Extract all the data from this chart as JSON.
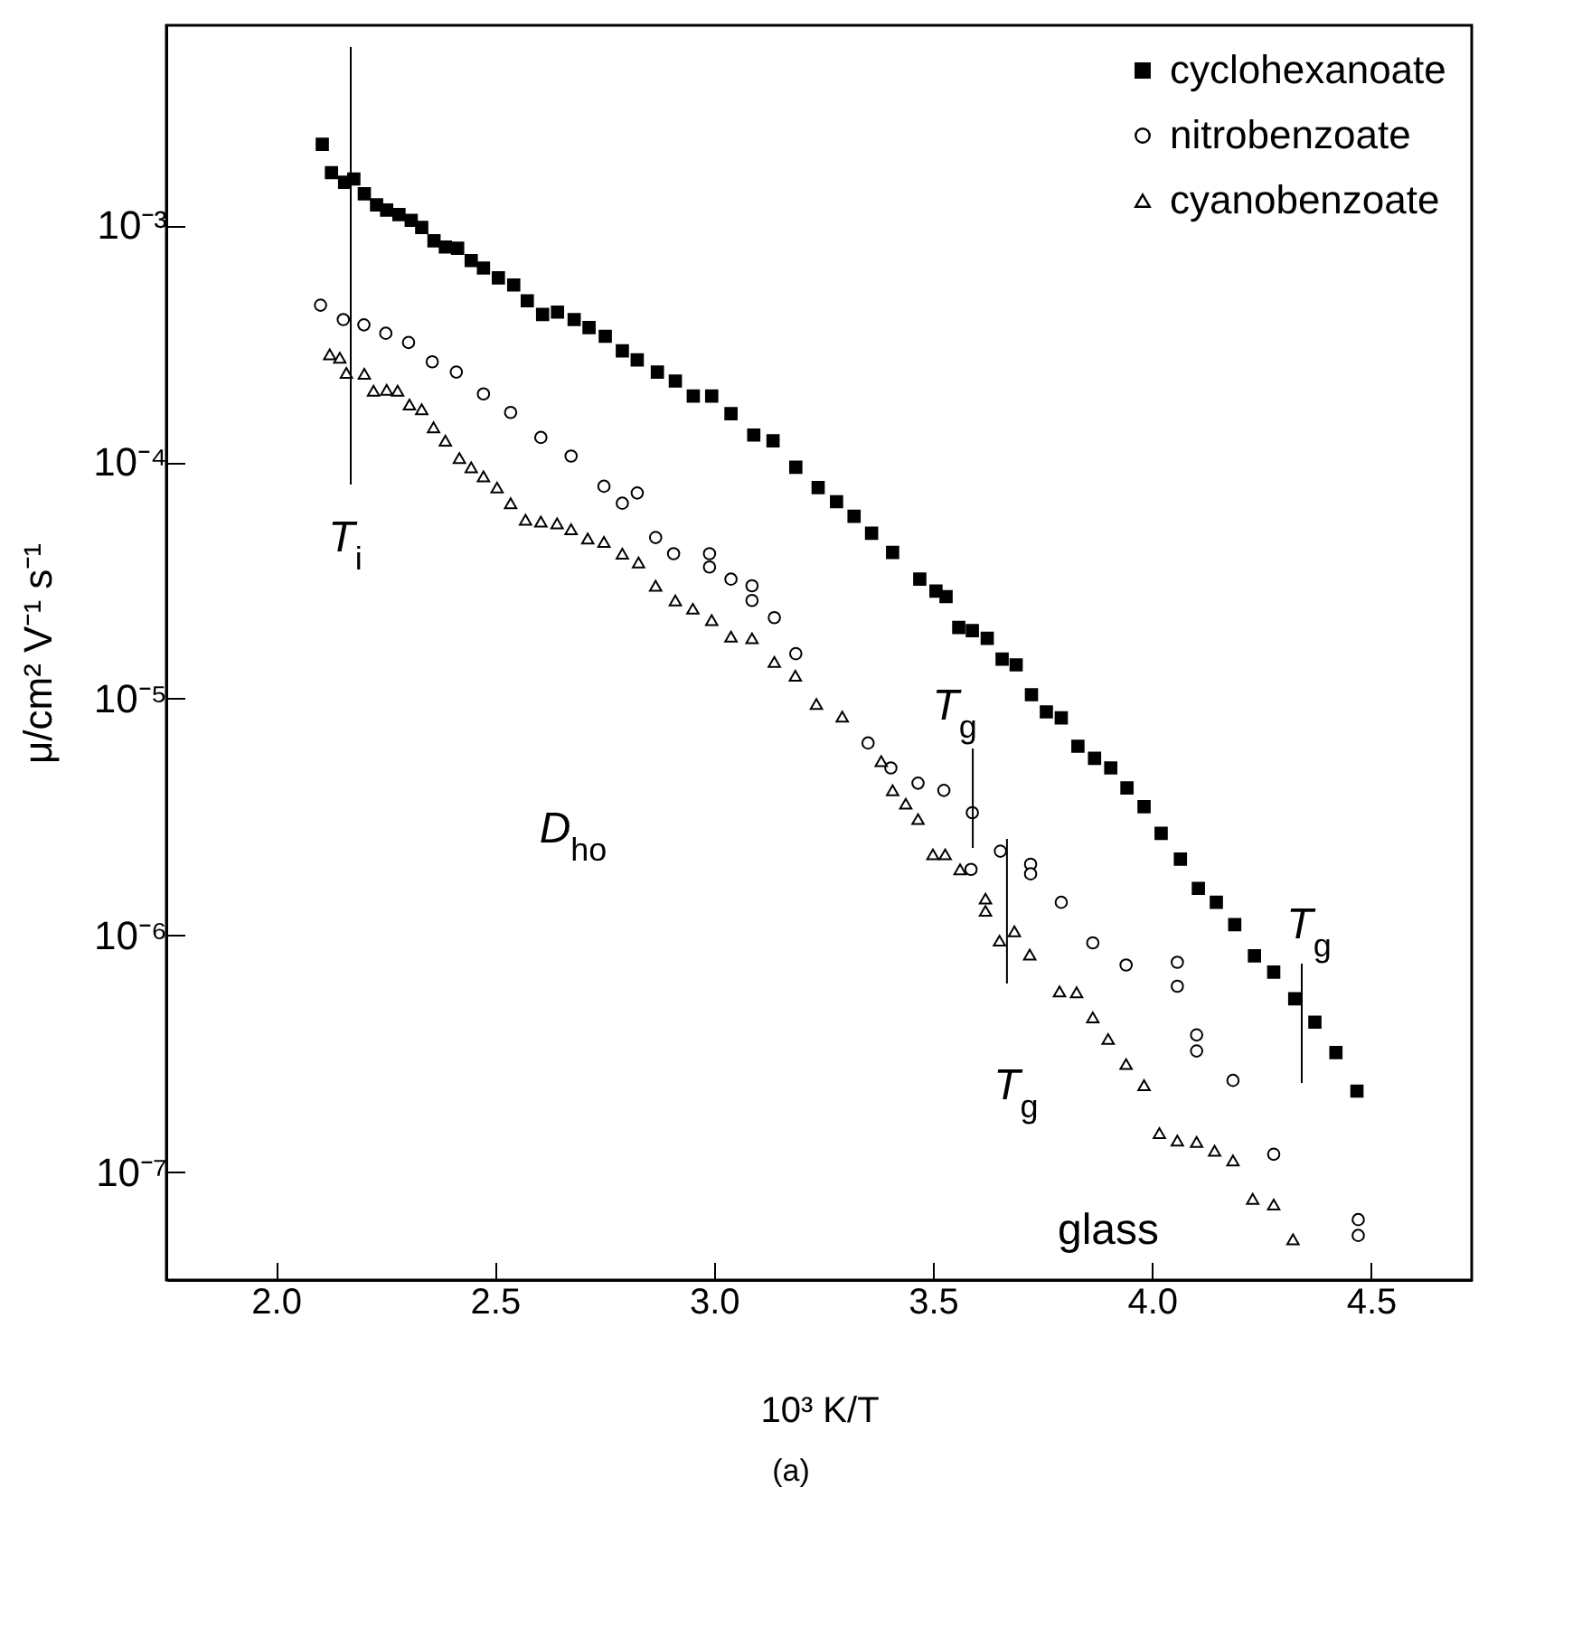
{
  "chart_data": {
    "type": "scatter",
    "xlabel": "10³ K/T",
    "ylabel": "μ/cm² V⁻¹ s⁻¹",
    "log": "y",
    "grid": false,
    "legend": "top right",
    "xlim": [
      1.75,
      4.73
    ],
    "ylim": [
      3.5e-08,
      0.007
    ],
    "xticks": [
      {
        "value": 2,
        "label": "2.0"
      },
      {
        "value": 2.5,
        "label": "2.5"
      },
      {
        "value": 3,
        "label": "3.0"
      },
      {
        "value": 3.5,
        "label": "3.5"
      },
      {
        "value": 4,
        "label": "4.0"
      },
      {
        "value": 4.5,
        "label": "4.5"
      }
    ],
    "yticks": [
      {
        "value": 1e-07,
        "label": "10⁻⁷"
      },
      {
        "value": 1e-06,
        "label": "10⁻⁶"
      },
      {
        "value": 1e-05,
        "label": "10⁻⁵"
      },
      {
        "value": 0.0001,
        "label": "10⁻⁴"
      },
      {
        "value": 0.001,
        "label": "10⁻³"
      }
    ],
    "series": [
      {
        "name": "cyclohexanoate",
        "color": "#000000",
        "marker": "square",
        "x": [
          2.106,
          2.127,
          2.157,
          2.178,
          2.202,
          2.23,
          2.253,
          2.281,
          2.309,
          2.333,
          2.361,
          2.387,
          2.415,
          2.446,
          2.474,
          2.508,
          2.543,
          2.574,
          2.609,
          2.643,
          2.681,
          2.715,
          2.752,
          2.791,
          2.825,
          2.871,
          2.912,
          2.953,
          2.995,
          3.039,
          3.091,
          3.135,
          3.187,
          3.238,
          3.28,
          3.32,
          3.36,
          3.408,
          3.47,
          3.507,
          3.53,
          3.559,
          3.59,
          3.624,
          3.658,
          3.69,
          3.725,
          3.759,
          3.793,
          3.831,
          3.869,
          3.906,
          3.943,
          3.982,
          4.021,
          4.065,
          4.106,
          4.147,
          4.189,
          4.234,
          4.278,
          4.326,
          4.372,
          4.42,
          4.468
        ],
        "values": [
          0.0022,
          0.00167,
          0.00152,
          0.00157,
          0.00136,
          0.00122,
          0.00116,
          0.00111,
          0.00105,
          0.00098,
          0.00086,
          0.00081,
          0.0008,
          0.00071,
          0.00066,
          0.0006,
          0.00056,
          0.00048,
          0.00042,
          0.00043,
          0.0004,
          0.00037,
          0.00034,
          0.000295,
          0.00027,
          0.00024,
          0.00022,
          0.00019,
          0.00019,
          0.00016,
          0.00013,
          0.000123,
          9.5e-05,
          7.8e-05,
          6.8e-05,
          5.9e-05,
          5e-05,
          4.15e-05,
          3.2e-05,
          2.85e-05,
          2.7e-05,
          2e-05,
          1.94e-05,
          1.8e-05,
          1.47e-05,
          1.39e-05,
          1.04e-05,
          8.8e-06,
          8.3e-06,
          6.3e-06,
          5.6e-06,
          5.1e-06,
          4.2e-06,
          3.5e-06,
          2.7e-06,
          2.1e-06,
          1.58e-06,
          1.38e-06,
          1.11e-06,
          8.2e-07,
          7e-07,
          5.4e-07,
          4.3e-07,
          3.2e-07,
          2.2e-07
        ]
      },
      {
        "name": "nitrobenzoate",
        "color": "#000000",
        "marker": "circle",
        "x": [
          2.102,
          2.154,
          2.201,
          2.251,
          2.303,
          2.357,
          2.412,
          2.474,
          2.536,
          2.605,
          2.674,
          2.749,
          2.791,
          2.825,
          2.867,
          2.908,
          2.99,
          2.99,
          3.039,
          3.087,
          3.087,
          3.138,
          3.187,
          3.352,
          3.404,
          3.466,
          3.525,
          3.59,
          3.587,
          3.654,
          3.723,
          3.723,
          3.793,
          3.865,
          3.941,
          4.058,
          4.058,
          4.102,
          4.102,
          4.185,
          4.278,
          4.471,
          4.471
        ],
        "values": [
          0.00046,
          0.0004,
          0.00038,
          0.00035,
          0.00032,
          0.000265,
          0.00024,
          0.000194,
          0.000162,
          0.000127,
          0.000106,
          7.9e-05,
          6.7e-05,
          7.4e-05,
          4.8e-05,
          4.1e-05,
          4.1e-05,
          3.6e-05,
          3.2e-05,
          3e-05,
          2.6e-05,
          2.2e-05,
          1.55e-05,
          6.5e-06,
          5.1e-06,
          4.4e-06,
          4.1e-06,
          3.3e-06,
          1.9e-06,
          2.27e-06,
          2e-06,
          1.82e-06,
          1.38e-06,
          9.3e-07,
          7.5e-07,
          7.7e-07,
          6.1e-07,
          3.8e-07,
          3.25e-07,
          2.44e-07,
          1.19e-07,
          6.3e-08,
          5.4e-08
        ]
      },
      {
        "name": "cyanobenzoate",
        "color": "#000000",
        "marker": "triangle",
        "x": [
          2.123,
          2.146,
          2.161,
          2.202,
          2.223,
          2.253,
          2.278,
          2.305,
          2.333,
          2.36,
          2.387,
          2.419,
          2.446,
          2.474,
          2.505,
          2.536,
          2.57,
          2.605,
          2.642,
          2.674,
          2.712,
          2.749,
          2.791,
          2.828,
          2.867,
          2.912,
          2.952,
          2.995,
          3.039,
          3.087,
          3.138,
          3.186,
          3.234,
          3.293,
          3.382,
          3.408,
          3.438,
          3.466,
          3.5,
          3.528,
          3.562,
          3.62,
          3.62,
          3.652,
          3.686,
          3.721,
          3.789,
          3.828,
          3.865,
          3.9,
          3.941,
          3.982,
          4.017,
          4.058,
          4.102,
          4.143,
          4.185,
          4.23,
          4.278,
          4.322
        ],
        "values": [
          0.000285,
          0.000276,
          0.000238,
          0.000236,
          0.0002,
          0.000202,
          0.0002,
          0.000175,
          0.000167,
          0.00014,
          0.000123,
          0.000104,
          9.5e-05,
          8.7e-05,
          7.8e-05,
          6.7e-05,
          5.7e-05,
          5.6e-05,
          5.5e-05,
          5.2e-05,
          4.75e-05,
          4.6e-05,
          4.1e-05,
          3.76e-05,
          3e-05,
          2.6e-05,
          2.4e-05,
          2.15e-05,
          1.83e-05,
          1.8e-05,
          1.43e-05,
          1.25e-05,
          9.5e-06,
          8.4e-06,
          5.45e-06,
          4.1e-06,
          3.6e-06,
          3.1e-06,
          2.2e-06,
          2.2e-06,
          1.9e-06,
          1.43e-06,
          1.27e-06,
          9.5e-07,
          1.04e-06,
          8.3e-07,
          5.8e-07,
          5.75e-07,
          4.5e-07,
          3.65e-07,
          2.86e-07,
          2.33e-07,
          1.46e-07,
          1.36e-07,
          1.34e-07,
          1.23e-07,
          1.12e-07,
          7.7e-08,
          7.3e-08,
          5.2e-08
        ]
      }
    ],
    "ref_lines": [
      {
        "axis": "x",
        "value": 2.171,
        "label": "T$_{i}$"
      },
      {
        "axis": "x",
        "value": 3.591,
        "label": "T$_{g}$"
      },
      {
        "axis": "x",
        "value": 3.669,
        "label": "T$_{g}$"
      },
      {
        "axis": "x",
        "value": 4.342,
        "label": "T$_{g}$"
      }
    ],
    "annotations": [
      "D$_{ho}$",
      "glass",
      "(a)"
    ]
  }
}
